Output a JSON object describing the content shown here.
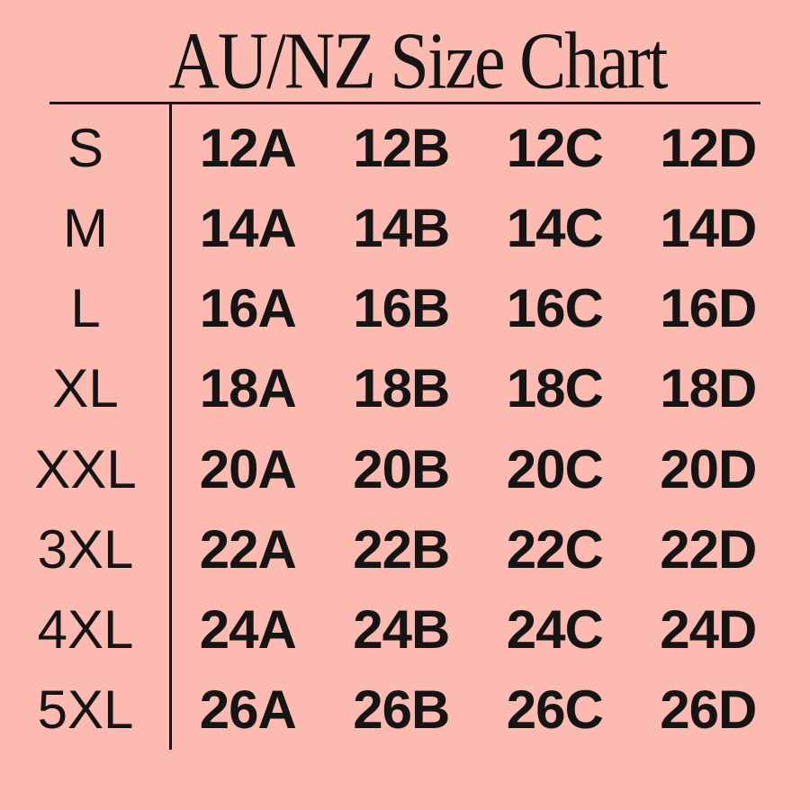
{
  "title": "AU/NZ Size Chart",
  "colors": {
    "background": "#fcbab0",
    "ink": "#151515",
    "line": "#151515"
  },
  "chart_data": {
    "type": "table",
    "title": "AU/NZ Size Chart",
    "row_headers": [
      "S",
      "M",
      "L",
      "XL",
      "XXL",
      "3XL",
      "4XL",
      "5XL"
    ],
    "rows": [
      {
        "label": "S",
        "values": [
          "12A",
          "12B",
          "12C",
          "12D"
        ]
      },
      {
        "label": "M",
        "values": [
          "14A",
          "14B",
          "14C",
          "14D"
        ]
      },
      {
        "label": "L",
        "values": [
          "16A",
          "16B",
          "16C",
          "16D"
        ]
      },
      {
        "label": "XL",
        "values": [
          "18A",
          "18B",
          "18C",
          "18D"
        ]
      },
      {
        "label": "XXL",
        "values": [
          "20A",
          "20B",
          "20C",
          "20D"
        ]
      },
      {
        "label": "3XL",
        "values": [
          "22A",
          "22B",
          "22C",
          "22D"
        ]
      },
      {
        "label": "4XL",
        "values": [
          "24A",
          "24B",
          "24C",
          "24D"
        ]
      },
      {
        "label": "5XL",
        "values": [
          "26A",
          "26B",
          "26C",
          "26D"
        ]
      }
    ],
    "layout": {
      "grid": "off",
      "top_rule": true,
      "column_divider_after_row_headers": true
    }
  }
}
